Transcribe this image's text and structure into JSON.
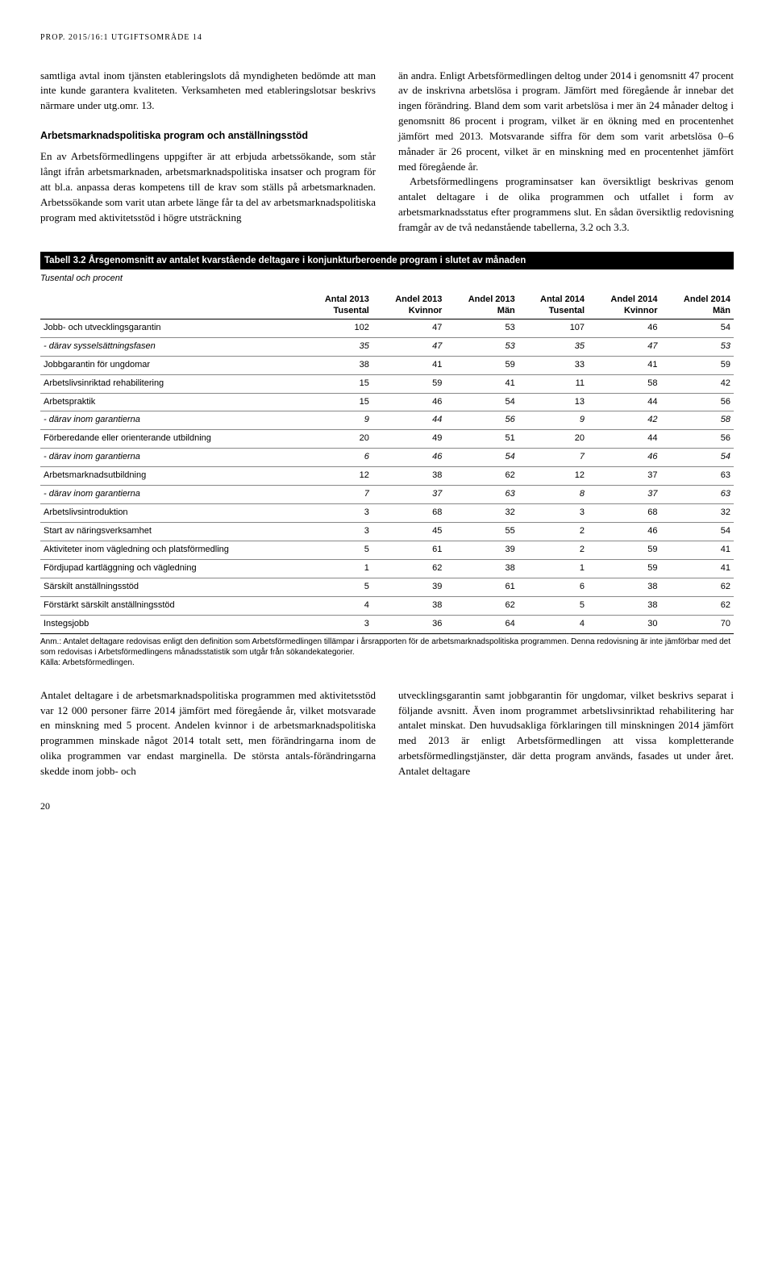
{
  "header": "PROP. 2015/16:1 UTGIFTSOMRÅDE 14",
  "left_col": {
    "p1": "samtliga avtal inom tjänsten etableringslots då myndigheten bedömde att man inte kunde garantera kvaliteten. Verksamheten med etableringslotsar beskrivs närmare under utg.omr. 13.",
    "sub": "Arbetsmarknadspolitiska program och anställningsstöd",
    "p2": "En av Arbetsförmedlingens uppgifter är att erbjuda arbetssökande, som står långt ifrån arbetsmarknaden, arbetsmarknadspolitiska insatser och program för att bl.a. anpassa deras kompetens till de krav som ställs på arbetsmarknaden. Arbetssökande som varit utan arbete länge får ta del av arbetsmarknadspolitiska program med aktivitetsstöd i högre utsträckning"
  },
  "right_col": {
    "p1": "än andra. Enligt Arbetsförmedlingen deltog under 2014 i genomsnitt 47 procent av de inskrivna arbetslösa i program. Jämfört med föregående år innebar det ingen förändring. Bland dem som varit arbetslösa i mer än 24 månader deltog i genomsnitt 86 procent i program, vilket är en ökning med en procentenhet jämfört med 2013. Motsvarande siffra för dem som varit arbetslösa 0–6 månader är 26 procent, vilket är en minskning med en procentenhet jämfört med föregående år.",
    "p2": "Arbetsförmedlingens programinsatser kan översiktligt beskrivas genom antalet deltagare i de olika programmen och utfallet i form av arbetsmarknadsstatus efter programmens slut. En sådan översiktlig redovisning framgår av de två nedanstående tabellerna, 3.2 och 3.3."
  },
  "table": {
    "title": "Tabell 3.2 Årsgenomsnitt av antalet kvarstående deltagare i konjunkturberoende program i slutet av månaden",
    "subtitle": "Tusental och procent",
    "headers": [
      {
        "l1": "",
        "l2": ""
      },
      {
        "l1": "Antal 2013",
        "l2": "Tusental"
      },
      {
        "l1": "Andel 2013",
        "l2": "Kvinnor"
      },
      {
        "l1": "Andel 2013",
        "l2": "Män"
      },
      {
        "l1": "Antal 2014",
        "l2": "Tusental"
      },
      {
        "l1": "Andel 2014",
        "l2": "Kvinnor"
      },
      {
        "l1": "Andel 2014",
        "l2": "Män"
      }
    ],
    "rows": [
      {
        "italic": false,
        "cells": [
          "Jobb- och utvecklingsgarantin",
          "102",
          "47",
          "53",
          "107",
          "46",
          "54"
        ]
      },
      {
        "italic": true,
        "cells": [
          "- därav sysselsättningsfasen",
          "35",
          "47",
          "53",
          "35",
          "47",
          "53"
        ]
      },
      {
        "italic": false,
        "cells": [
          "Jobbgarantin för ungdomar",
          "38",
          "41",
          "59",
          "33",
          "41",
          "59"
        ]
      },
      {
        "italic": false,
        "cells": [
          "Arbetslivsinriktad rehabilitering",
          "15",
          "59",
          "41",
          "11",
          "58",
          "42"
        ]
      },
      {
        "italic": false,
        "cells": [
          "Arbetspraktik",
          "15",
          "46",
          "54",
          "13",
          "44",
          "56"
        ]
      },
      {
        "italic": true,
        "cells": [
          "- därav inom garantierna",
          "9",
          "44",
          "56",
          "9",
          "42",
          "58"
        ]
      },
      {
        "italic": false,
        "cells": [
          "Förberedande eller orienterande utbildning",
          "20",
          "49",
          "51",
          "20",
          "44",
          "56"
        ]
      },
      {
        "italic": true,
        "cells": [
          "- därav inom garantierna",
          "6",
          "46",
          "54",
          "7",
          "46",
          "54"
        ]
      },
      {
        "italic": false,
        "cells": [
          "Arbetsmarknadsutbildning",
          "12",
          "38",
          "62",
          "12",
          "37",
          "63"
        ]
      },
      {
        "italic": true,
        "cells": [
          "- därav inom garantierna",
          "7",
          "37",
          "63",
          "8",
          "37",
          "63"
        ]
      },
      {
        "italic": false,
        "cells": [
          "Arbetslivsintroduktion",
          "3",
          "68",
          "32",
          "3",
          "68",
          "32"
        ]
      },
      {
        "italic": false,
        "cells": [
          "Start av näringsverksamhet",
          "3",
          "45",
          "55",
          "2",
          "46",
          "54"
        ]
      },
      {
        "italic": false,
        "cells": [
          "Aktiviteter inom vägledning och platsförmedling",
          "5",
          "61",
          "39",
          "2",
          "59",
          "41"
        ]
      },
      {
        "italic": false,
        "cells": [
          "Fördjupad kartläggning och vägledning",
          "1",
          "62",
          "38",
          "1",
          "59",
          "41"
        ]
      },
      {
        "italic": false,
        "cells": [
          "Särskilt anställningsstöd",
          "5",
          "39",
          "61",
          "6",
          "38",
          "62"
        ]
      },
      {
        "italic": false,
        "cells": [
          "Förstärkt särskilt anställningsstöd",
          "4",
          "38",
          "62",
          "5",
          "38",
          "62"
        ]
      },
      {
        "italic": false,
        "cells": [
          "Instegsjobb",
          "3",
          "36",
          "64",
          "4",
          "30",
          "70"
        ]
      }
    ],
    "footnote": "Anm.: Antalet deltagare redovisas enligt den definition som Arbetsförmedlingen tillämpar i årsrapporten för de arbetsmarknadspolitiska programmen. Denna redovisning är inte jämförbar med det som redovisas i Arbetsförmedlingens månadsstatistik som utgår från sökandekategorier.",
    "source": "Källa: Arbetsförmedlingen."
  },
  "bottom_left": {
    "p1": "Antalet deltagare i de arbetsmarknadspolitiska programmen med aktivitetsstöd var 12 000 personer färre 2014 jämfört med föregående år, vilket motsvarade en minskning med 5 procent. Andelen kvinnor i de arbetsmarknadspolitiska programmen minskade något 2014 totalt sett, men förändringarna inom de olika programmen var endast marginella. De största antals-förändringarna skedde inom jobb- och"
  },
  "bottom_right": {
    "p1": "utvecklingsgarantin samt jobbgarantin för ungdomar, vilket beskrivs separat i följande avsnitt. Även inom programmet arbetslivsinriktad rehabilitering har antalet minskat. Den huvudsakliga förklaringen till minskningen 2014 jämfört med 2013 är enligt Arbetsförmedlingen att vissa kompletterande arbetsförmedlingstjänster, där detta program används, fasades ut under året. Antalet deltagare"
  },
  "page_num": "20"
}
